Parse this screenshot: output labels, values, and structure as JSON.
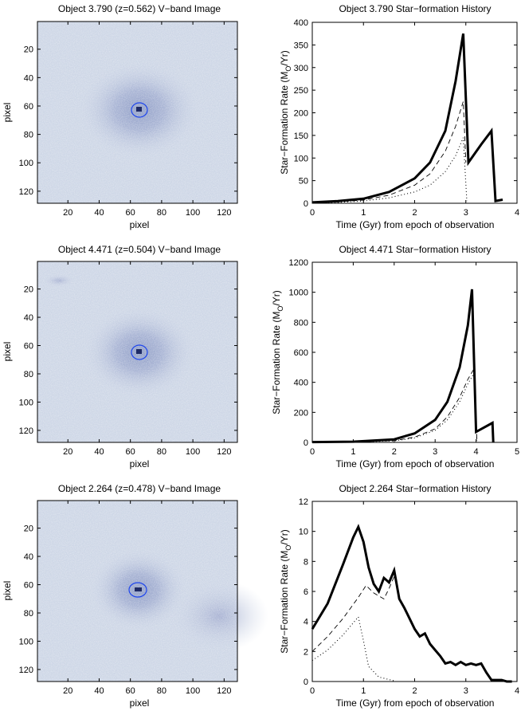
{
  "rows": [
    {
      "image": {
        "title": "Object 3.790 (z=0.562) V−band Image",
        "xlabel": "pixel",
        "ylabel": "pixel",
        "xticks": [
          "20",
          "40",
          "60",
          "80",
          "100",
          "120"
        ],
        "yticks": [
          "20",
          "40",
          "60",
          "80",
          "100",
          "120"
        ],
        "colors": {
          "bg": "#cdd6e6",
          "halo": "#8f9dc6",
          "core": "#1e2a66",
          "ring": "#1d45ee"
        }
      },
      "chart_data": {
        "type": "line",
        "title": "Object 3.790 Star−formation History",
        "xlabel": "Time (Gyr) from epoch of observation",
        "ylabel_main": "Star−Formation Rate (M",
        "ylabel_sub": "O",
        "ylabel_end": "/Yr)",
        "xlim": [
          0,
          4
        ],
        "ylim": [
          0,
          400
        ],
        "xticks": [
          "0",
          "1",
          "2",
          "3",
          "4"
        ],
        "yticks": [
          "0",
          "50",
          "100",
          "150",
          "200",
          "250",
          "300",
          "350",
          "400"
        ],
        "series": [
          {
            "name": "total",
            "style": "solid",
            "x": [
              0,
              0.5,
              1,
              1.5,
              2,
              2.3,
              2.6,
              2.8,
              2.95,
              3.05,
              3.3,
              3.5,
              3.58,
              3.72
            ],
            "y": [
              2,
              5,
              10,
              25,
              55,
              90,
              160,
              270,
              375,
              90,
              130,
              160,
              5,
              8
            ]
          },
          {
            "name": "component-dashed",
            "style": "dashed",
            "x": [
              0,
              0.5,
              1,
              1.5,
              2,
              2.3,
              2.6,
              2.8,
              2.95,
              3.0
            ],
            "y": [
              1,
              3,
              7,
              18,
              40,
              65,
              115,
              170,
              225,
              90
            ]
          },
          {
            "name": "component-dotted",
            "style": "dotted",
            "x": [
              0,
              0.5,
              1,
              1.5,
              2,
              2.3,
              2.6,
              2.8,
              2.95,
              3.02
            ],
            "y": [
              0.5,
              2,
              5,
              12,
              25,
              40,
              70,
              105,
              145,
              5
            ]
          }
        ]
      }
    },
    {
      "image": {
        "title": "Object 4.471 (z=0.504) V−band Image",
        "xlabel": "pixel",
        "ylabel": "pixel",
        "xticks": [
          "20",
          "40",
          "60",
          "80",
          "100",
          "120"
        ],
        "yticks": [
          "20",
          "40",
          "60",
          "80",
          "100",
          "120"
        ],
        "colors": {
          "bg": "#cdd6e6",
          "halo": "#8f9dc6",
          "core": "#1e2a66",
          "ring": "#1d45ee"
        }
      },
      "chart_data": {
        "type": "line",
        "title": "Object 4.471 Star−formation History",
        "xlabel": "Time (Gyr) from epoch of observation",
        "ylabel_main": "Star−Formation Rate (M",
        "ylabel_sub": "O",
        "ylabel_end": "/Yr)",
        "xlim": [
          0,
          5
        ],
        "ylim": [
          0,
          1200
        ],
        "xticks": [
          "0",
          "1",
          "2",
          "3",
          "4",
          "5"
        ],
        "yticks": [
          "0",
          "200",
          "400",
          "600",
          "800",
          "1000",
          "1200"
        ],
        "series": [
          {
            "name": "total",
            "style": "solid",
            "x": [
              0,
              1,
              2,
              2.5,
              3,
              3.3,
              3.6,
              3.8,
              3.9,
              4.0,
              4.4,
              4.42
            ],
            "y": [
              2,
              5,
              20,
              60,
              150,
              270,
              500,
              780,
              1020,
              70,
              130,
              0
            ]
          },
          {
            "name": "component-dashed",
            "style": "dashed",
            "x": [
              0,
              1,
              2,
              2.5,
              3,
              3.3,
              3.6,
              3.8,
              3.95,
              4.02
            ],
            "y": [
              1,
              3,
              12,
              35,
              90,
              170,
              300,
              420,
              490,
              20
            ]
          },
          {
            "name": "component-dotted",
            "style": "dotted",
            "x": [
              0,
              1,
              2,
              2.5,
              3,
              3.3,
              3.6,
              3.8,
              3.95,
              4.02
            ],
            "y": [
              0.5,
              2,
              10,
              30,
              80,
              150,
              270,
              390,
              460,
              10
            ]
          }
        ]
      }
    },
    {
      "image": {
        "title": "Object 2.264 (z=0.478) V−band Image",
        "xlabel": "pixel",
        "ylabel": "pixel",
        "xticks": [
          "20",
          "40",
          "60",
          "80",
          "100",
          "120"
        ],
        "yticks": [
          "20",
          "40",
          "60",
          "80",
          "100",
          "120"
        ],
        "colors": {
          "bg": "#cdd6e6",
          "halo": "#8f9dc6",
          "core": "#1e2a66",
          "ring": "#1d45ee"
        }
      },
      "chart_data": {
        "type": "line",
        "title": "Object 2.264 Star−formation History",
        "xlabel": "Time (Gyr) from epoch of observation",
        "ylabel_main": "Star−Formation Rate (M",
        "ylabel_sub": "O",
        "ylabel_end": "/Yr)",
        "xlim": [
          0,
          4
        ],
        "ylim": [
          0,
          12
        ],
        "xticks": [
          "0",
          "1",
          "2",
          "3",
          "4"
        ],
        "yticks": [
          "0",
          "2",
          "4",
          "6",
          "8",
          "10",
          "12"
        ],
        "series": [
          {
            "name": "total",
            "style": "solid",
            "x": [
              0,
              0.3,
              0.6,
              0.8,
              0.9,
              1.0,
              1.1,
              1.2,
              1.3,
              1.4,
              1.5,
              1.6,
              1.7,
              1.8,
              1.9,
              2.0,
              2.1,
              2.2,
              2.3,
              2.4,
              2.5,
              2.6,
              2.7,
              2.8,
              2.9,
              3.0,
              3.1,
              3.2,
              3.3,
              3.4,
              3.5,
              3.6,
              3.7,
              3.8,
              3.9
            ],
            "y": [
              3.5,
              5.2,
              7.8,
              9.6,
              10.3,
              9.3,
              7.6,
              6.5,
              6.0,
              6.9,
              6.6,
              7.4,
              5.5,
              4.9,
              4.2,
              3.5,
              3.0,
              3.2,
              2.5,
              2.1,
              1.7,
              1.2,
              1.3,
              1.1,
              1.3,
              1.1,
              1.2,
              1.1,
              1.2,
              0.6,
              0.1,
              0.1,
              0.1,
              0.0,
              0.0
            ]
          },
          {
            "name": "component-dashed",
            "style": "dashed",
            "x": [
              0,
              0.3,
              0.6,
              0.9,
              1.05,
              1.2,
              1.4,
              1.5,
              1.6
            ],
            "y": [
              2.0,
              3.0,
              4.2,
              5.6,
              6.4,
              5.9,
              5.5,
              6.2,
              7.0
            ]
          },
          {
            "name": "component-dotted",
            "style": "dotted",
            "x": [
              0,
              0.3,
              0.6,
              0.8,
              0.9,
              1.0,
              1.1,
              1.3,
              1.6
            ],
            "y": [
              1.4,
              2.1,
              3.1,
              3.9,
              4.3,
              2.7,
              1.0,
              0.3,
              0.05
            ]
          }
        ]
      }
    }
  ]
}
